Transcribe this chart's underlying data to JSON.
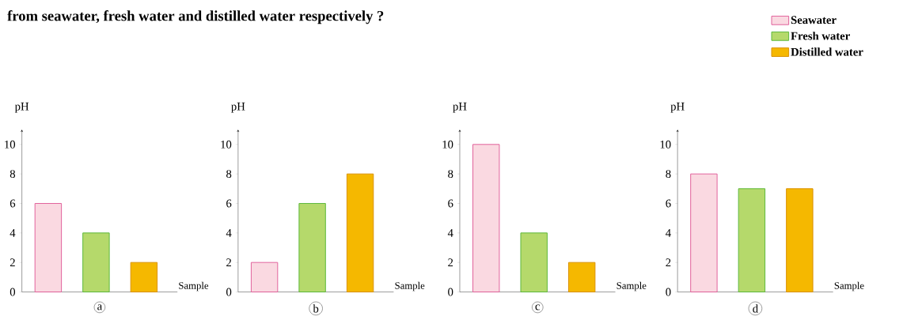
{
  "chart_data": [
    {
      "type": "bar",
      "title": "from seawater, fresh water and distilled water respectively ?",
      "xlabel": "Sample",
      "ylabel": "pH",
      "categories": [
        null,
        null,
        null
      ],
      "ylim": [
        0,
        11
      ],
      "yticks": [
        0,
        2,
        4,
        6,
        8,
        10
      ],
      "annotations": [
        "a"
      ],
      "series": [
        {
          "color": "#fad9e1",
          "values": [
            6,
            null,
            null
          ]
        },
        {
          "color": "#b5d96b",
          "values": [
            null,
            4,
            null
          ]
        },
        {
          "color": "#f5b800",
          "values": [
            null,
            null,
            2
          ]
        }
      ]
    },
    {
      "type": "bar",
      "xlabel": "Sample",
      "ylabel": "pH",
      "categories": [
        null,
        null,
        null
      ],
      "ylim": [
        0,
        11
      ],
      "yticks": [
        0,
        2,
        4,
        6,
        8,
        10
      ],
      "annotations": [
        "b"
      ],
      "series": [
        {
          "color": "#fad9e1",
          "values": [
            2,
            null,
            null
          ]
        },
        {
          "color": "#b5d96b",
          "values": [
            null,
            6,
            null
          ]
        },
        {
          "color": "#f5b800",
          "values": [
            null,
            null,
            8
          ]
        }
      ]
    },
    {
      "type": "bar",
      "xlabel": "Sample",
      "ylabel": "pH",
      "categories": [
        null,
        null,
        null
      ],
      "ylim": [
        0,
        11
      ],
      "yticks": [
        0,
        2,
        4,
        6,
        8,
        10
      ],
      "annotations": [
        "c"
      ],
      "series": [
        {
          "color": "#fad9e1",
          "values": [
            10,
            null,
            null
          ]
        },
        {
          "color": "#b5d96b",
          "values": [
            null,
            4,
            null
          ]
        },
        {
          "color": "#f5b800",
          "values": [
            null,
            null,
            2
          ]
        }
      ]
    },
    {
      "type": "bar",
      "xlabel": "Sample",
      "ylabel": "pH",
      "categories": [
        null,
        null,
        null
      ],
      "ylim": [
        0,
        11
      ],
      "yticks": [
        0,
        2,
        4,
        6,
        8,
        10
      ],
      "annotations": [
        "d"
      ],
      "legend": "top right",
      "series": [
        {
          "name": "Seawater",
          "color": "#fad9e1",
          "values": [
            8,
            null,
            null
          ]
        },
        {
          "name": "Fresh water",
          "color": "#b5d96b",
          "values": [
            null,
            7,
            null
          ]
        },
        {
          "name": "Distilled water",
          "color": "#f5b800",
          "values": [
            null,
            null,
            7
          ]
        }
      ]
    }
  ]
}
